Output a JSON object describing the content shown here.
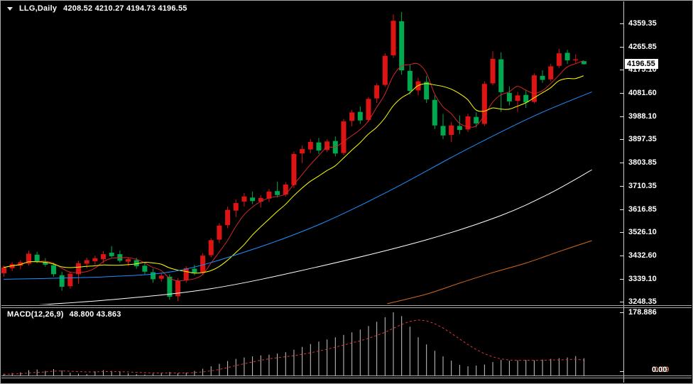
{
  "header": {
    "symbol": "LLG,Daily",
    "ohlc": "4208.52 4210.27 4194.73 4196.55"
  },
  "macd": {
    "label": "MACD(12,26,9)",
    "values": "48.800 43.863",
    "axis_top": "178.886",
    "axis_zero": "0.00",
    "axis_zero_overlap": "0.09"
  },
  "chart_data": {
    "type": "candlestick",
    "title": "LLG,Daily",
    "timeframe": "Daily",
    "last_ohlc": {
      "open": 4208.52,
      "high": 4210.27,
      "low": 4194.73,
      "close": 4196.55
    },
    "grid": "off",
    "up_color": "#dd1414",
    "down_color": "#00a84f",
    "price_axis": {
      "tick_prices": [
        4359.35,
        4265.85,
        4175.1,
        4081.6,
        3988.1,
        3897.35,
        3803.85,
        3710.35,
        3616.85,
        3526.1,
        3432.6,
        3339.1,
        3248.35
      ],
      "current_price": 4196.55,
      "current_price_label": "4196.55",
      "price_per_pixel": 2.8342
    },
    "candles": [
      [
        3362,
        3392,
        3348,
        3385
      ],
      [
        3382,
        3406,
        3370,
        3398
      ],
      [
        3392,
        3414,
        3378,
        3406
      ],
      [
        3400,
        3452,
        3392,
        3440
      ],
      [
        3436,
        3448,
        3402,
        3410
      ],
      [
        3406,
        3422,
        3388,
        3396
      ],
      [
        3394,
        3404,
        3348,
        3358
      ],
      [
        3354,
        3368,
        3292,
        3308
      ],
      [
        3310,
        3368,
        3300,
        3360
      ],
      [
        3358,
        3412,
        3320,
        3402
      ],
      [
        3400,
        3424,
        3382,
        3414
      ],
      [
        3410,
        3432,
        3396,
        3422
      ],
      [
        3418,
        3450,
        3402,
        3438
      ],
      [
        3444,
        3470,
        3424,
        3430
      ],
      [
        3438,
        3452,
        3404,
        3412
      ],
      [
        3408,
        3426,
        3392,
        3418
      ],
      [
        3414,
        3424,
        3380,
        3390
      ],
      [
        3392,
        3402,
        3358,
        3368
      ],
      [
        3366,
        3380,
        3324,
        3338
      ],
      [
        3340,
        3362,
        3328,
        3352
      ],
      [
        3348,
        3358,
        3256,
        3268
      ],
      [
        3270,
        3342,
        3250,
        3332
      ],
      [
        3334,
        3390,
        3324,
        3382
      ],
      [
        3380,
        3396,
        3354,
        3364
      ],
      [
        3366,
        3442,
        3358,
        3432
      ],
      [
        3434,
        3502,
        3426,
        3494
      ],
      [
        3496,
        3562,
        3482,
        3552
      ],
      [
        3554,
        3628,
        3542,
        3615
      ],
      [
        3612,
        3656,
        3586,
        3642
      ],
      [
        3648,
        3682,
        3628,
        3668
      ],
      [
        3664,
        3688,
        3638,
        3650
      ],
      [
        3648,
        3674,
        3624,
        3662
      ],
      [
        3660,
        3698,
        3646,
        3688
      ],
      [
        3690,
        3728,
        3664,
        3674
      ],
      [
        3676,
        3726,
        3668,
        3716
      ],
      [
        3714,
        3848,
        3702,
        3838
      ],
      [
        3840,
        3872,
        3802,
        3858
      ],
      [
        3856,
        3898,
        3842,
        3886
      ],
      [
        3884,
        3902,
        3838,
        3852
      ],
      [
        3854,
        3896,
        3846,
        3888
      ],
      [
        3890,
        3908,
        3828,
        3840
      ],
      [
        3842,
        3978,
        3834,
        3968
      ],
      [
        3970,
        4014,
        3948,
        4004
      ],
      [
        4006,
        4028,
        3958,
        3972
      ],
      [
        3974,
        4065,
        3966,
        4058
      ],
      [
        4060,
        4120,
        4042,
        4112
      ],
      [
        4114,
        4240,
        4106,
        4230
      ],
      [
        4232,
        4395,
        4222,
        4370
      ],
      [
        4368,
        4405,
        4155,
        4172
      ],
      [
        4170,
        4195,
        4075,
        4090
      ],
      [
        4092,
        4142,
        4072,
        4128
      ],
      [
        4126,
        4150,
        4042,
        4056
      ],
      [
        4054,
        4072,
        3938,
        3952
      ],
      [
        3950,
        3998,
        3898,
        3912
      ],
      [
        3914,
        3966,
        3886,
        3952
      ],
      [
        3950,
        3992,
        3918,
        3934
      ],
      [
        3936,
        3998,
        3926,
        3988
      ],
      [
        3986,
        4004,
        3944,
        3960
      ],
      [
        3958,
        4128,
        3950,
        4118
      ],
      [
        4120,
        4248,
        4112,
        4218
      ],
      [
        4216,
        4244,
        4006,
        4085
      ],
      [
        4082,
        4108,
        4032,
        4048
      ],
      [
        4050,
        4086,
        4006,
        4072
      ],
      [
        4074,
        4094,
        4022,
        4044
      ],
      [
        4046,
        4160,
        4040,
        4152
      ],
      [
        4150,
        4172,
        4122,
        4134
      ],
      [
        4136,
        4198,
        4128,
        4188
      ],
      [
        4190,
        4258,
        4182,
        4240
      ],
      [
        4242,
        4254,
        4198,
        4212
      ],
      [
        4212,
        4236,
        4198,
        4216
      ],
      [
        4208.52,
        4210.27,
        4194.73,
        4196.55
      ]
    ],
    "overlays": [
      {
        "name": "ma-fast",
        "style": "sma",
        "period": 5,
        "color": "#d02828"
      },
      {
        "name": "ma-medium",
        "style": "sma",
        "period": 10,
        "color": "#ffff00"
      },
      {
        "name": "ma-long",
        "style": "points",
        "color": "#1e90ff",
        "points": [
          [
            0,
            3338
          ],
          [
            12.5,
            3348
          ],
          [
            21,
            3372
          ],
          [
            29.6,
            3452
          ],
          [
            38.2,
            3558
          ],
          [
            46.8,
            3695
          ],
          [
            55.4,
            3848
          ],
          [
            63.9,
            3988
          ],
          [
            71,
            4086
          ]
        ]
      },
      {
        "name": "ma-longer",
        "style": "points",
        "color": "#ffffff",
        "points": [
          [
            2.5,
            3232
          ],
          [
            12.5,
            3255
          ],
          [
            25,
            3300
          ],
          [
            38,
            3388
          ],
          [
            51,
            3495
          ],
          [
            60,
            3592
          ],
          [
            66,
            3682
          ],
          [
            71,
            3775
          ]
        ]
      },
      {
        "name": "ma-longest",
        "style": "points",
        "color": "#d2691e",
        "points": [
          [
            46.3,
            3240
          ],
          [
            51,
            3278
          ],
          [
            55,
            3322
          ],
          [
            59,
            3364
          ],
          [
            63,
            3402
          ],
          [
            67,
            3448
          ],
          [
            71,
            3492
          ]
        ]
      }
    ],
    "indicator": {
      "name": "MACD",
      "params": "12,26,9",
      "value_main": 48.8,
      "value_signal": 43.863,
      "axis_max": 178.886,
      "axis_min": 0,
      "histogram_color": "#c9c9c9",
      "signal_color": "#e03838",
      "histogram": [
        5,
        7,
        9,
        15,
        17,
        13,
        18,
        14,
        8,
        5,
        4,
        12,
        15,
        13,
        10,
        6,
        4,
        3,
        5,
        8,
        10,
        6,
        8,
        13,
        19,
        26,
        33,
        41,
        47,
        51,
        54,
        57,
        59,
        62,
        66,
        73,
        81,
        89,
        96,
        102,
        108,
        115,
        122,
        130,
        140,
        152,
        165,
        178.9,
        168,
        138,
        108,
        88,
        70,
        54,
        42,
        30,
        26,
        28,
        31,
        38,
        44,
        42,
        43,
        44,
        43,
        45,
        47,
        49,
        51,
        55,
        48.8
      ],
      "signal": [
        3,
        4,
        5,
        7,
        9,
        10,
        12,
        13,
        12,
        11,
        10,
        10,
        11,
        11,
        11,
        10,
        9,
        8,
        7,
        7,
        7,
        7,
        7,
        8,
        10,
        13,
        17,
        22,
        28,
        33,
        38,
        43,
        47,
        50,
        53,
        56,
        60,
        64,
        69,
        74,
        80,
        86,
        92,
        98,
        105,
        113,
        122,
        133,
        144,
        153,
        157,
        155,
        147,
        135,
        120,
        104,
        88,
        74,
        62,
        53,
        47,
        44,
        43,
        43,
        43,
        43,
        44,
        44,
        45,
        46,
        43.863
      ]
    }
  }
}
